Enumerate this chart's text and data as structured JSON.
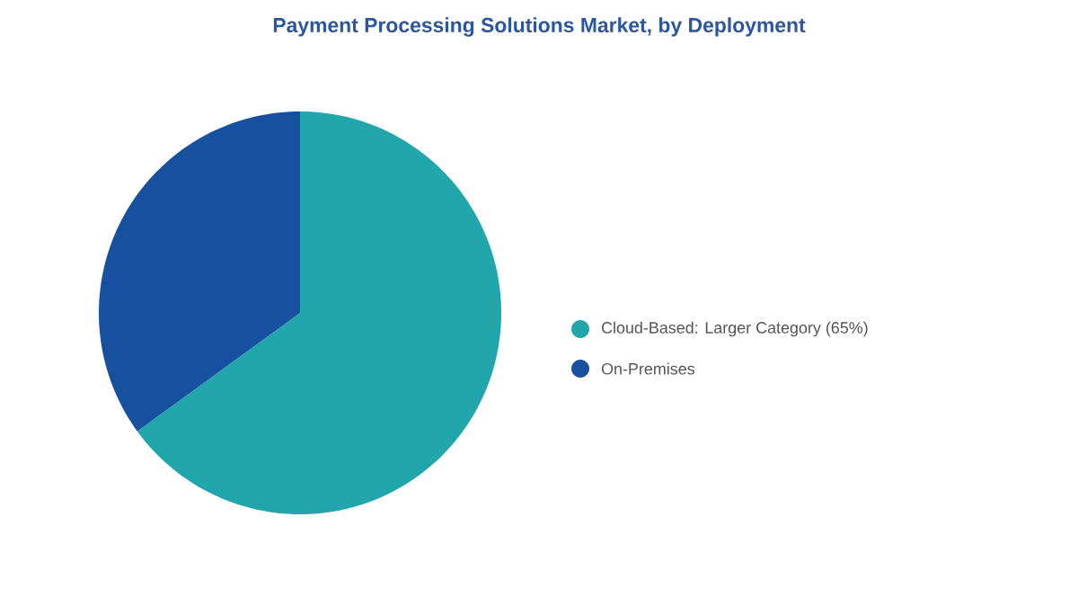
{
  "chart_data": {
    "type": "pie",
    "title": "Payment Processing Solutions Market, by Deployment",
    "categories": [
      "Cloud-Based:  Larger Category (65%)",
      "On-Premises"
    ],
    "values": [
      65,
      35
    ],
    "colors": [
      "#21a7ab",
      "#16509f"
    ],
    "legend": "right"
  }
}
